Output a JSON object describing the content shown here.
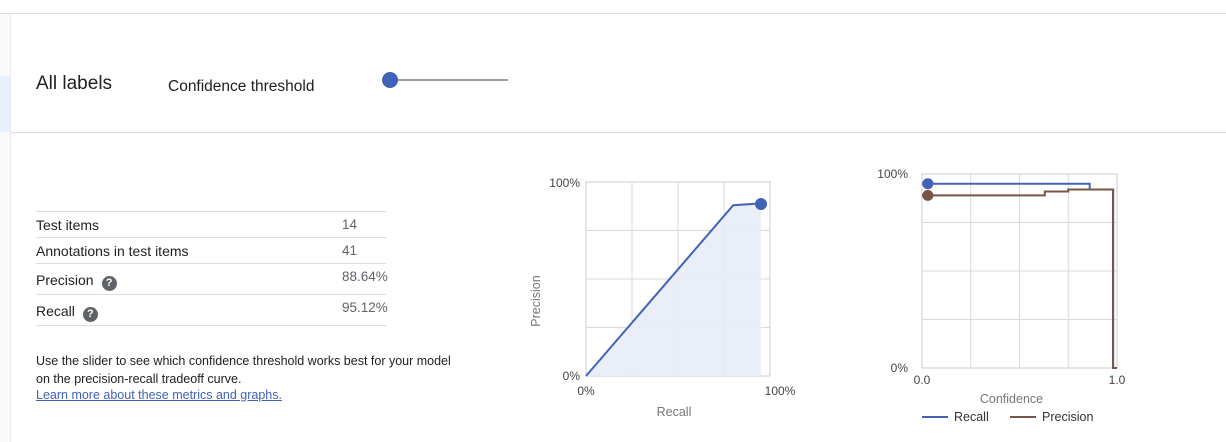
{
  "header": {
    "title": "All labels",
    "confidence_label": "Confidence threshold",
    "slider_value": 0.0
  },
  "metrics": [
    {
      "name": "Test items",
      "value": "14",
      "help": false
    },
    {
      "name": "Annotations in test items",
      "value": "41",
      "help": false
    },
    {
      "name": "Precision",
      "value": "88.64%",
      "help": true
    },
    {
      "name": "Recall",
      "value": "95.12%",
      "help": true
    }
  ],
  "help_glyph": "?",
  "description": "Use the slider to see which confidence threshold works best for your model on the precision-recall tradeoff curve.",
  "learn_more": "Learn more about these metrics and graphs.",
  "colors": {
    "accent": "#4162b7",
    "recall": "#4162b7",
    "precision": "#795548",
    "area_fill": "#e8ecf8"
  },
  "chart_data": [
    {
      "type": "area",
      "xlabel": "Recall",
      "ylabel": "Precision",
      "x_ticks": [
        "0%",
        "100%"
      ],
      "y_ticks": [
        "0%",
        "100%"
      ],
      "xlim": [
        0,
        100
      ],
      "ylim": [
        0,
        100
      ],
      "grid": true,
      "x": [
        0,
        80,
        95
      ],
      "y": [
        0,
        88,
        89
      ],
      "marker": {
        "x": 95.12,
        "y": 88.64
      }
    },
    {
      "type": "line",
      "xlabel": "Confidence",
      "x_ticks": [
        "0.0",
        "1.0"
      ],
      "y_ticks": [
        "0%",
        "100%"
      ],
      "xlim": [
        0,
        1
      ],
      "ylim": [
        0,
        100
      ],
      "grid": true,
      "legend": "bottom",
      "series": [
        {
          "name": "Recall",
          "color": "#4162b7",
          "x": [
            0.0,
            0.86,
            0.86,
            0.98,
            0.98,
            1.0
          ],
          "y": [
            95,
            95,
            92,
            92,
            0,
            0
          ],
          "marker": {
            "x": 0.03,
            "y": 95
          }
        },
        {
          "name": "Precision",
          "color": "#795548",
          "x": [
            0.0,
            0.63,
            0.63,
            0.75,
            0.75,
            0.98,
            0.98,
            1.0
          ],
          "y": [
            89,
            89,
            91,
            91,
            92,
            92,
            0,
            0
          ],
          "marker": {
            "x": 0.03,
            "y": 89
          }
        }
      ]
    }
  ]
}
